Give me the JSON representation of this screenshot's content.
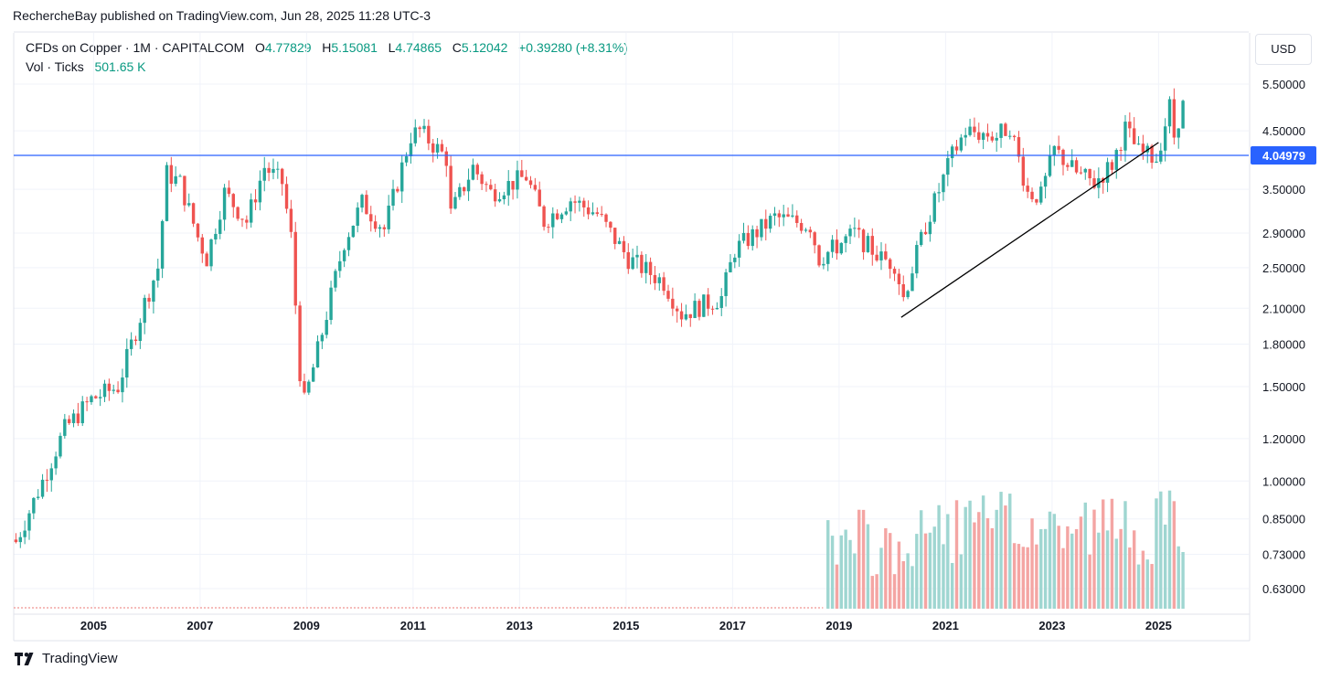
{
  "header": {
    "published": "RechercheBay published on TradingView.com, Jun 28, 2025 11:28 UTC-3"
  },
  "legend": {
    "symbol": "CFDs on Copper · 1M · CAPITALCOM",
    "open_label": "O",
    "open": "4.77829",
    "high_label": "H",
    "high": "5.15081",
    "low_label": "L",
    "low": "4.74865",
    "close_label": "C",
    "close": "5.12042",
    "change": "+0.39280 (+8.31%)",
    "vol_label": "Vol · Ticks",
    "vol_value": "501.65 K"
  },
  "currency_button": "USD",
  "price_tag": "4.04979",
  "footer": {
    "brand": "TradingView"
  },
  "colors": {
    "up": "#26a69a",
    "down": "#ef5350",
    "vol_up": "#9fd6d1",
    "vol_down": "#f4a5a3",
    "horizontal_line": "#2962ff",
    "trendline": "#000000"
  },
  "chart_data": {
    "type": "candlestick",
    "scale": "log",
    "y_ticks": [
      "5.50000",
      "4.50000",
      "3.50000",
      "2.90000",
      "2.50000",
      "2.10000",
      "1.80000",
      "1.50000",
      "1.20000",
      "1.00000",
      "0.85000",
      "0.73000",
      "0.63000"
    ],
    "x_ticks": [
      "2005",
      "2007",
      "2009",
      "2011",
      "2013",
      "2015",
      "2017",
      "2019",
      "2021",
      "2023",
      "2025"
    ],
    "horizontal_level": 4.04979,
    "trendline": {
      "from": [
        "2020-03",
        2.02
      ],
      "to": [
        "2025-01",
        4.28
      ]
    },
    "monthly_close_anchors": [
      [
        "2003-07",
        0.77
      ],
      [
        "2004-01",
        1.0
      ],
      [
        "2004-06",
        1.25
      ],
      [
        "2004-12",
        1.42
      ],
      [
        "2005-06",
        1.5
      ],
      [
        "2005-12",
        2.15
      ],
      [
        "2006-03",
        2.5
      ],
      [
        "2006-05",
        3.75
      ],
      [
        "2006-08",
        3.6
      ],
      [
        "2006-12",
        2.85
      ],
      [
        "2007-02",
        2.6
      ],
      [
        "2007-06",
        3.45
      ],
      [
        "2007-11",
        3.05
      ],
      [
        "2008-03",
        3.85
      ],
      [
        "2008-07",
        3.6
      ],
      [
        "2008-09",
        2.85
      ],
      [
        "2008-11",
        1.6
      ],
      [
        "2008-12",
        1.4
      ],
      [
        "2009-03",
        1.75
      ],
      [
        "2009-09",
        2.8
      ],
      [
        "2010-01",
        3.3
      ],
      [
        "2010-06",
        2.95
      ],
      [
        "2010-12",
        4.4
      ],
      [
        "2011-02",
        4.5
      ],
      [
        "2011-08",
        4.0
      ],
      [
        "2011-09",
        3.15
      ],
      [
        "2012-02",
        3.85
      ],
      [
        "2012-06",
        3.45
      ],
      [
        "2013-02",
        3.7
      ],
      [
        "2013-06",
        3.05
      ],
      [
        "2013-12",
        3.35
      ],
      [
        "2014-06",
        3.15
      ],
      [
        "2015-01",
        2.6
      ],
      [
        "2015-09",
        2.35
      ],
      [
        "2016-01",
        2.05
      ],
      [
        "2016-10",
        2.2
      ],
      [
        "2017-01",
        2.7
      ],
      [
        "2017-10",
        3.1
      ],
      [
        "2018-06",
        3.0
      ],
      [
        "2018-08",
        2.6
      ],
      [
        "2019-04",
        2.9
      ],
      [
        "2019-10",
        2.6
      ],
      [
        "2020-01",
        2.55
      ],
      [
        "2020-03",
        2.2
      ],
      [
        "2020-08",
        3.0
      ],
      [
        "2021-02",
        4.05
      ],
      [
        "2021-05",
        4.5
      ],
      [
        "2021-12",
        4.4
      ],
      [
        "2022-03",
        4.6
      ],
      [
        "2022-07",
        3.45
      ],
      [
        "2022-10",
        3.4
      ],
      [
        "2023-01",
        4.15
      ],
      [
        "2023-06",
        3.75
      ],
      [
        "2023-10",
        3.6
      ],
      [
        "2024-02",
        3.9
      ],
      [
        "2024-05",
        4.55
      ],
      [
        "2024-08",
        4.1
      ],
      [
        "2024-12",
        4.0
      ],
      [
        "2025-03",
        5.0
      ],
      [
        "2025-04",
        4.4
      ],
      [
        "2025-06",
        5.12042
      ]
    ]
  }
}
